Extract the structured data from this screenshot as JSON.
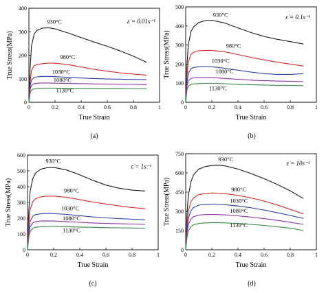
{
  "chart_data": [
    {
      "type": "line",
      "caption": "(a)",
      "rate_label": "ε̇ = 0.01s⁻¹",
      "xlabel": "True Strain",
      "ylabel": "True Stress(MPa)",
      "xlim": [
        0.0,
        1.0
      ],
      "ylim": [
        0,
        400
      ],
      "xticks": [
        0.0,
        0.2,
        0.4,
        0.6,
        0.8,
        1.0
      ],
      "yticks": [
        0,
        100,
        200,
        300,
        400
      ],
      "series": [
        {
          "name": "930°C",
          "color": "#1a1a1a",
          "x": [
            0.0,
            0.01,
            0.02,
            0.04,
            0.06,
            0.1,
            0.15,
            0.2,
            0.3,
            0.4,
            0.5,
            0.6,
            0.7,
            0.8,
            0.9
          ],
          "y": [
            0,
            150,
            240,
            290,
            305,
            315,
            317,
            312,
            295,
            275,
            256,
            238,
            218,
            196,
            170
          ]
        },
        {
          "name": "980°C",
          "color": "#d62728",
          "x": [
            0.0,
            0.01,
            0.02,
            0.04,
            0.06,
            0.1,
            0.15,
            0.2,
            0.3,
            0.4,
            0.5,
            0.6,
            0.7,
            0.8,
            0.9
          ],
          "y": [
            0,
            90,
            135,
            155,
            160,
            164,
            166,
            166,
            160,
            150,
            140,
            132,
            125,
            120,
            115
          ]
        },
        {
          "name": "1030°C",
          "color": "#2a3ea8",
          "x": [
            0.0,
            0.01,
            0.02,
            0.04,
            0.06,
            0.1,
            0.15,
            0.2,
            0.3,
            0.4,
            0.5,
            0.6,
            0.7,
            0.8,
            0.9
          ],
          "y": [
            0,
            70,
            95,
            105,
            108,
            110,
            110,
            109,
            106,
            103,
            101,
            99,
            98,
            97,
            96
          ]
        },
        {
          "name": "1080°C",
          "color": "#8b2fa8",
          "x": [
            0.0,
            0.01,
            0.02,
            0.04,
            0.06,
            0.1,
            0.15,
            0.2,
            0.3,
            0.4,
            0.5,
            0.6,
            0.7,
            0.8,
            0.9
          ],
          "y": [
            0,
            55,
            72,
            79,
            81,
            82,
            82,
            81,
            80,
            79,
            78,
            77,
            76,
            76,
            75
          ]
        },
        {
          "name": "1130°C",
          "color": "#2e8b3a",
          "x": [
            0.0,
            0.01,
            0.02,
            0.04,
            0.06,
            0.1,
            0.15,
            0.2,
            0.3,
            0.4,
            0.5,
            0.6,
            0.7,
            0.8,
            0.9
          ],
          "y": [
            0,
            40,
            52,
            57,
            59,
            60,
            60,
            60,
            59,
            59,
            58,
            58,
            58,
            57,
            57
          ]
        }
      ]
    },
    {
      "type": "line",
      "caption": "(b)",
      "rate_label": "ε̇ = 0.1s⁻¹",
      "xlabel": "True Strain",
      "ylabel": "True Stress(MPa)",
      "xlim": [
        0.0,
        1.0
      ],
      "ylim": [
        0,
        500
      ],
      "xticks": [
        0.0,
        0.2,
        0.4,
        0.6,
        0.8,
        1.0
      ],
      "yticks": [
        0,
        100,
        200,
        300,
        400,
        500
      ],
      "series": [
        {
          "name": "930°C",
          "color": "#1a1a1a",
          "x": [
            0.0,
            0.01,
            0.02,
            0.04,
            0.06,
            0.1,
            0.15,
            0.2,
            0.3,
            0.4,
            0.5,
            0.6,
            0.7,
            0.8,
            0.9
          ],
          "y": [
            0,
            200,
            300,
            370,
            395,
            418,
            428,
            430,
            415,
            390,
            365,
            345,
            330,
            318,
            305
          ]
        },
        {
          "name": "980°C",
          "color": "#d62728",
          "x": [
            0.0,
            0.01,
            0.02,
            0.04,
            0.06,
            0.1,
            0.15,
            0.2,
            0.3,
            0.4,
            0.5,
            0.6,
            0.7,
            0.8,
            0.9
          ],
          "y": [
            0,
            140,
            210,
            250,
            262,
            270,
            272,
            272,
            264,
            250,
            235,
            222,
            210,
            200,
            190
          ]
        },
        {
          "name": "1030°C",
          "color": "#2a3ea8",
          "x": [
            0.0,
            0.01,
            0.02,
            0.04,
            0.06,
            0.1,
            0.15,
            0.2,
            0.3,
            0.4,
            0.5,
            0.6,
            0.7,
            0.8,
            0.9
          ],
          "y": [
            0,
            105,
            150,
            175,
            182,
            186,
            187,
            186,
            178,
            168,
            158,
            150,
            146,
            146,
            150
          ]
        },
        {
          "name": "1080°C",
          "color": "#8b2fa8",
          "x": [
            0.0,
            0.01,
            0.02,
            0.04,
            0.06,
            0.1,
            0.15,
            0.2,
            0.3,
            0.4,
            0.5,
            0.6,
            0.7,
            0.8,
            0.9
          ],
          "y": [
            0,
            85,
            112,
            125,
            128,
            130,
            130,
            129,
            125,
            120,
            116,
            113,
            111,
            110,
            108
          ]
        },
        {
          "name": "1130°C",
          "color": "#2e8b3a",
          "x": [
            0.0,
            0.01,
            0.02,
            0.04,
            0.06,
            0.1,
            0.15,
            0.2,
            0.3,
            0.4,
            0.5,
            0.6,
            0.7,
            0.8,
            0.9
          ],
          "y": [
            0,
            65,
            84,
            93,
            96,
            98,
            99,
            99,
            97,
            94,
            92,
            90,
            89,
            88,
            87
          ]
        }
      ]
    },
    {
      "type": "line",
      "caption": "(c)",
      "rate_label": "ε̇ = 1s⁻¹",
      "xlabel": "True Strain",
      "ylabel": "True Stress(MPa)",
      "xlim": [
        0.0,
        1.0
      ],
      "ylim": [
        0,
        600
      ],
      "xticks": [
        0.0,
        0.2,
        0.4,
        0.6,
        0.8,
        1.0
      ],
      "yticks": [
        0,
        100,
        200,
        300,
        400,
        500,
        600
      ],
      "series": [
        {
          "name": "930°C",
          "color": "#1a1a1a",
          "x": [
            0.0,
            0.01,
            0.02,
            0.04,
            0.06,
            0.1,
            0.15,
            0.2,
            0.3,
            0.4,
            0.5,
            0.6,
            0.7,
            0.8,
            0.9
          ],
          "y": [
            0,
            250,
            370,
            450,
            485,
            510,
            520,
            522,
            505,
            475,
            440,
            410,
            390,
            378,
            372
          ]
        },
        {
          "name": "980°C",
          "color": "#d62728",
          "x": [
            0.0,
            0.01,
            0.02,
            0.04,
            0.06,
            0.1,
            0.15,
            0.2,
            0.3,
            0.4,
            0.5,
            0.6,
            0.7,
            0.8,
            0.9
          ],
          "y": [
            0,
            170,
            255,
            305,
            322,
            335,
            340,
            340,
            332,
            318,
            302,
            290,
            278,
            268,
            260
          ]
        },
        {
          "name": "1030°C",
          "color": "#2a3ea8",
          "x": [
            0.0,
            0.01,
            0.02,
            0.04,
            0.06,
            0.1,
            0.15,
            0.2,
            0.3,
            0.4,
            0.5,
            0.6,
            0.7,
            0.8,
            0.9
          ],
          "y": [
            0,
            120,
            180,
            212,
            222,
            228,
            230,
            229,
            224,
            216,
            208,
            202,
            198,
            194,
            190
          ]
        },
        {
          "name": "1080°C",
          "color": "#8b2fa8",
          "x": [
            0.0,
            0.01,
            0.02,
            0.04,
            0.06,
            0.1,
            0.15,
            0.2,
            0.3,
            0.4,
            0.5,
            0.6,
            0.7,
            0.8,
            0.9
          ],
          "y": [
            0,
            100,
            145,
            170,
            178,
            182,
            183,
            182,
            178,
            174,
            170,
            167,
            165,
            163,
            161
          ]
        },
        {
          "name": "1130°C",
          "color": "#2e8b3a",
          "x": [
            0.0,
            0.01,
            0.02,
            0.04,
            0.06,
            0.1,
            0.15,
            0.2,
            0.3,
            0.4,
            0.5,
            0.6,
            0.7,
            0.8,
            0.9
          ],
          "y": [
            0,
            80,
            115,
            135,
            142,
            146,
            148,
            148,
            146,
            144,
            142,
            140,
            139,
            138,
            137
          ]
        }
      ]
    },
    {
      "type": "line",
      "caption": "(d)",
      "rate_label": "ε̇ = 10s⁻¹",
      "xlabel": "True Strain",
      "ylabel": "True Stress(MPa)",
      "xlim": [
        0.0,
        1.0
      ],
      "ylim": [
        0,
        750
      ],
      "xticks": [
        0.0,
        0.2,
        0.4,
        0.6,
        0.8,
        1.0
      ],
      "yticks": [
        0,
        150,
        300,
        450,
        600,
        750
      ],
      "series": [
        {
          "name": "930°C",
          "color": "#1a1a1a",
          "x": [
            0.0,
            0.01,
            0.02,
            0.04,
            0.06,
            0.1,
            0.15,
            0.2,
            0.25,
            0.3,
            0.4,
            0.5,
            0.6,
            0.7,
            0.8,
            0.9
          ],
          "y": [
            0,
            280,
            420,
            530,
            585,
            630,
            650,
            658,
            660,
            655,
            630,
            595,
            555,
            510,
            460,
            400
          ]
        },
        {
          "name": "980°C",
          "color": "#d62728",
          "x": [
            0.0,
            0.01,
            0.02,
            0.04,
            0.06,
            0.1,
            0.15,
            0.2,
            0.25,
            0.3,
            0.4,
            0.5,
            0.6,
            0.7,
            0.8,
            0.9
          ],
          "y": [
            0,
            200,
            300,
            375,
            405,
            430,
            440,
            443,
            442,
            438,
            425,
            405,
            380,
            350,
            315,
            280
          ]
        },
        {
          "name": "1030°C",
          "color": "#2a3ea8",
          "x": [
            0.0,
            0.01,
            0.02,
            0.04,
            0.06,
            0.1,
            0.15,
            0.2,
            0.25,
            0.3,
            0.4,
            0.5,
            0.6,
            0.7,
            0.8,
            0.9
          ],
          "y": [
            0,
            160,
            245,
            305,
            330,
            348,
            355,
            357,
            356,
            352,
            342,
            328,
            310,
            290,
            268,
            245
          ]
        },
        {
          "name": "1080°C",
          "color": "#8b2fa8",
          "x": [
            0.0,
            0.01,
            0.02,
            0.04,
            0.06,
            0.1,
            0.15,
            0.2,
            0.25,
            0.3,
            0.4,
            0.5,
            0.6,
            0.7,
            0.8,
            0.9
          ],
          "y": [
            0,
            130,
            195,
            240,
            258,
            270,
            275,
            276,
            275,
            272,
            265,
            255,
            243,
            230,
            215,
            198
          ]
        },
        {
          "name": "1130°C",
          "color": "#2e8b3a",
          "x": [
            0.0,
            0.01,
            0.02,
            0.04,
            0.06,
            0.1,
            0.15,
            0.2,
            0.25,
            0.3,
            0.4,
            0.5,
            0.6,
            0.7,
            0.8,
            0.9
          ],
          "y": [
            0,
            95,
            145,
            180,
            195,
            205,
            210,
            212,
            212,
            210,
            205,
            198,
            190,
            180,
            168,
            150
          ]
        }
      ]
    }
  ]
}
